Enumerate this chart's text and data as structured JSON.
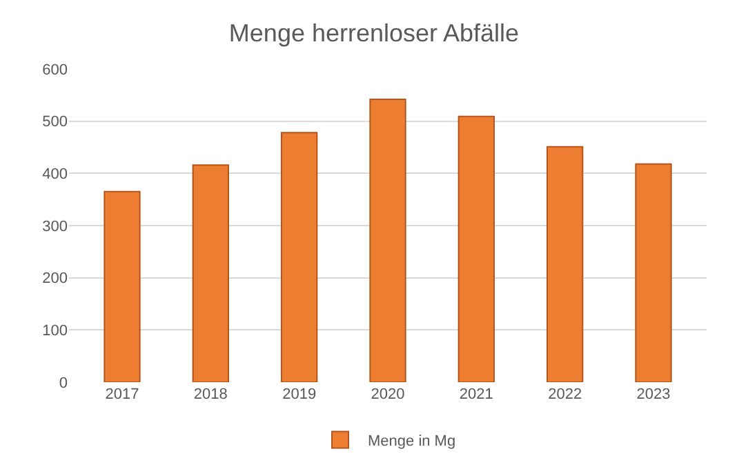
{
  "chart_data": {
    "type": "bar",
    "title": "Menge herrenloser Abfälle",
    "categories": [
      "2017",
      "2018",
      "2019",
      "2020",
      "2021",
      "2022",
      "2023"
    ],
    "series": [
      {
        "name": "Menge in Mg",
        "color": "#ed7d31",
        "values": [
          365,
          416,
          478,
          542,
          509,
          451,
          418
        ]
      }
    ],
    "ylim": [
      0,
      600
    ],
    "yticks": [
      0,
      100,
      200,
      300,
      400,
      500,
      600
    ],
    "grid": "y",
    "legend": "bottom"
  }
}
